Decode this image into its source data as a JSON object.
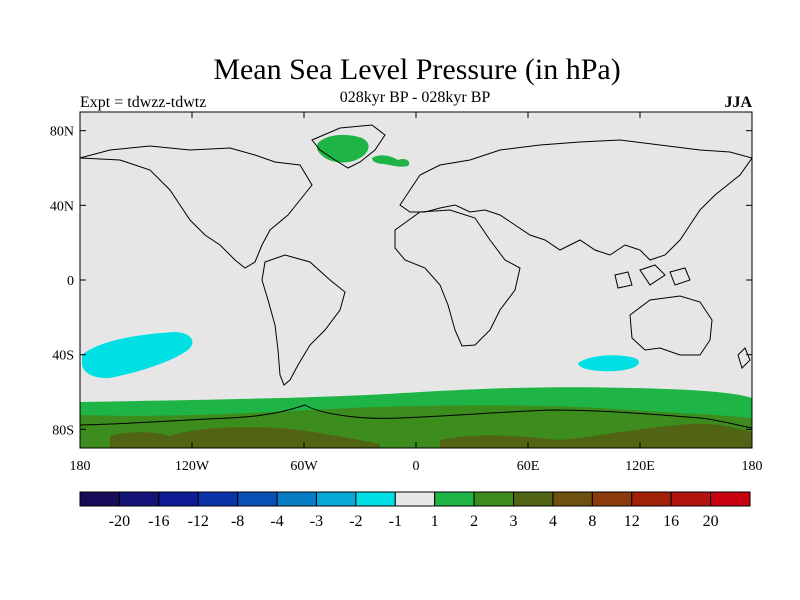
{
  "title": "Mean Sea Level Pressure (in hPa)",
  "subtitle": "028kyr BP - 028kyr BP",
  "experiment_label": "Expt = tdwzz-tdwtz",
  "season_label": "JJA",
  "map": {
    "projection": "cylindrical-equidistant",
    "lon_range": [
      -180,
      180
    ],
    "lat_range": [
      -90,
      90
    ],
    "x_ticks": [
      {
        "lon": -180,
        "label": "180"
      },
      {
        "lon": -120,
        "label": "120W"
      },
      {
        "lon": -60,
        "label": "60W"
      },
      {
        "lon": 0,
        "label": "0"
      },
      {
        "lon": 60,
        "label": "60E"
      },
      {
        "lon": 120,
        "label": "120E"
      },
      {
        "lon": 180,
        "label": "180"
      }
    ],
    "y_ticks": [
      {
        "lat": 80,
        "label": "80N"
      },
      {
        "lat": 40,
        "label": "40N"
      },
      {
        "lat": 0,
        "label": "0"
      },
      {
        "lat": -40,
        "label": "40S"
      },
      {
        "lat": -80,
        "label": "80S"
      }
    ],
    "background_color": "#e6e6e6"
  },
  "colorbar": {
    "colors": [
      "#170b5a",
      "#141478",
      "#101c96",
      "#0c34aa",
      "#0850b4",
      "#087cc4",
      "#08a8d8",
      "#00e0e4",
      "#e6e6e6",
      "#1eb446",
      "#3c8c1e",
      "#506414",
      "#6e5010",
      "#8c3c0c",
      "#a02008",
      "#b41410",
      "#c80010"
    ],
    "labels": [
      "-20",
      "-16",
      "-12",
      "-8",
      "-4",
      "-3",
      "-2",
      "-1",
      "1",
      "2",
      "3",
      "4",
      "8",
      "12",
      "16",
      "20"
    ]
  }
}
